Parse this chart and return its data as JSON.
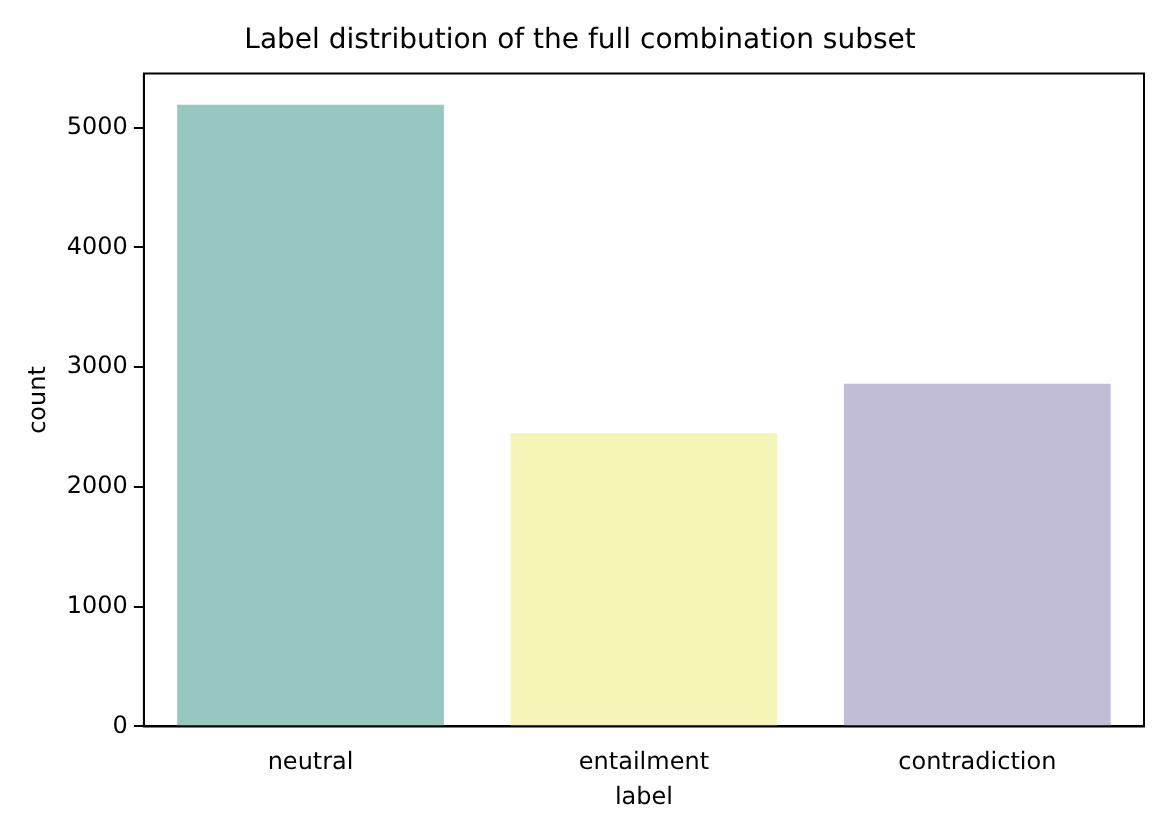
{
  "chart_data": {
    "type": "bar",
    "title": "Label distribution of the full combination subset",
    "xlabel": "label",
    "ylabel": "count",
    "categories": [
      "neutral",
      "entailment",
      "contradiction"
    ],
    "values": [
      5190,
      2450,
      2860
    ],
    "colors": [
      "#96c8c0",
      "#f5f5b8",
      "#c1bdd6"
    ],
    "ylim": [
      0,
      5450
    ],
    "yticks": [
      0,
      1000,
      2000,
      3000,
      4000,
      5000
    ],
    "grid": false,
    "legend": false
  }
}
